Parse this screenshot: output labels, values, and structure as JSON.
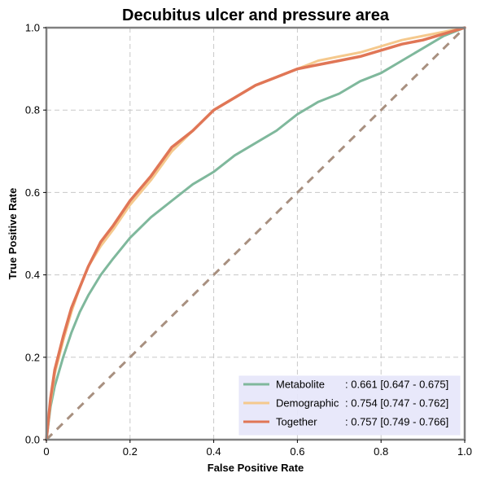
{
  "chart_data": {
    "type": "line",
    "title": "Decubitus ulcer and pressure area",
    "xlabel": "False Positive Rate",
    "ylabel": "True Positive Rate",
    "xlim": [
      0,
      1
    ],
    "ylim": [
      0,
      1
    ],
    "xticks": [
      "0",
      "0.2",
      "0.4",
      "0.6",
      "0.8",
      "1.0"
    ],
    "yticks": [
      "0.0",
      "0.2",
      "0.4",
      "0.6",
      "0.8",
      "1.0"
    ],
    "grid": true,
    "legend_position": "lower-right",
    "series": [
      {
        "name": "Metabolite",
        "auc_label": ": 0.661 [0.647 - 0.675]",
        "color": "#7fb89c",
        "x": [
          0,
          0.01,
          0.02,
          0.04,
          0.06,
          0.08,
          0.1,
          0.13,
          0.16,
          0.2,
          0.25,
          0.3,
          0.35,
          0.4,
          0.45,
          0.5,
          0.55,
          0.6,
          0.65,
          0.7,
          0.75,
          0.8,
          0.85,
          0.9,
          0.95,
          1.0
        ],
        "y": [
          0,
          0.08,
          0.13,
          0.2,
          0.26,
          0.31,
          0.35,
          0.4,
          0.44,
          0.49,
          0.54,
          0.58,
          0.62,
          0.65,
          0.69,
          0.72,
          0.75,
          0.79,
          0.82,
          0.84,
          0.87,
          0.89,
          0.92,
          0.95,
          0.98,
          1.0
        ]
      },
      {
        "name": "Demographic",
        "auc_label": ": 0.754 [0.747 - 0.762]",
        "color": "#f5c98d",
        "x": [
          0,
          0.01,
          0.02,
          0.04,
          0.06,
          0.08,
          0.1,
          0.13,
          0.16,
          0.2,
          0.25,
          0.3,
          0.35,
          0.4,
          0.45,
          0.5,
          0.55,
          0.6,
          0.65,
          0.7,
          0.75,
          0.8,
          0.85,
          0.9,
          0.95,
          1.0
        ],
        "y": [
          0,
          0.09,
          0.16,
          0.24,
          0.31,
          0.37,
          0.42,
          0.47,
          0.51,
          0.57,
          0.63,
          0.7,
          0.75,
          0.8,
          0.83,
          0.86,
          0.88,
          0.9,
          0.92,
          0.93,
          0.94,
          0.955,
          0.97,
          0.98,
          0.99,
          1.0
        ]
      },
      {
        "name": "Together",
        "auc_label": ": 0.757 [0.749 - 0.766]",
        "color": "#e07656",
        "x": [
          0,
          0.01,
          0.02,
          0.04,
          0.06,
          0.08,
          0.1,
          0.13,
          0.16,
          0.2,
          0.25,
          0.3,
          0.35,
          0.4,
          0.45,
          0.5,
          0.55,
          0.6,
          0.65,
          0.7,
          0.75,
          0.8,
          0.85,
          0.9,
          0.95,
          1.0
        ],
        "y": [
          0,
          0.1,
          0.17,
          0.25,
          0.32,
          0.37,
          0.42,
          0.48,
          0.52,
          0.58,
          0.64,
          0.71,
          0.75,
          0.8,
          0.83,
          0.86,
          0.88,
          0.9,
          0.91,
          0.92,
          0.93,
          0.945,
          0.96,
          0.97,
          0.985,
          1.0
        ]
      }
    ],
    "reference_line": {
      "color": "#a89080",
      "x": [
        0,
        1
      ],
      "y": [
        0,
        1
      ]
    }
  }
}
